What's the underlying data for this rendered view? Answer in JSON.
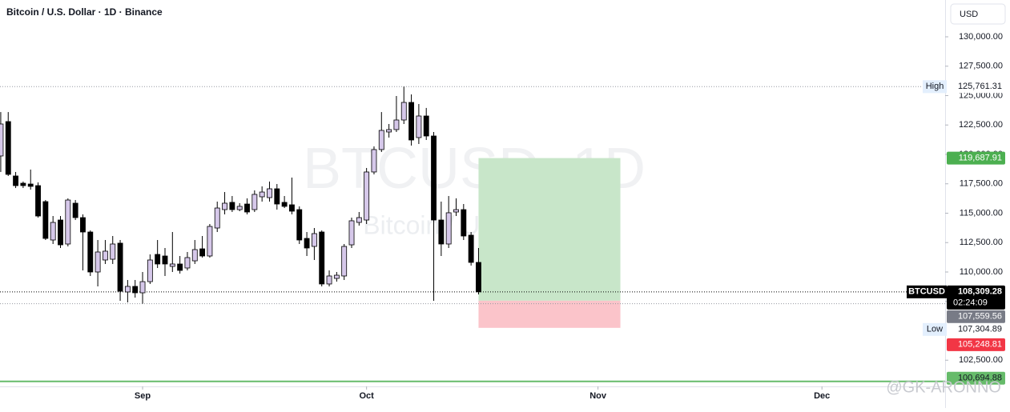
{
  "chart_data": {
    "type": "candlestick",
    "title": "Bitcoin / U.S. Dollar · 1D · Binance",
    "currency": "USD",
    "watermark_symbol": "BTCUSD, 1D",
    "watermark_name": "Bitcoin / U.S. Dollar",
    "credit": "@GK-ARONNO",
    "up_color": "#d6c8ea",
    "down_color": "#000000",
    "x": [
      -19,
      -18,
      -17,
      -16,
      -15,
      -14,
      -13,
      -12,
      -11,
      -10,
      -9,
      -8,
      -7,
      -6,
      -5,
      -4,
      -3,
      -2,
      -1,
      0,
      1,
      2,
      3,
      4,
      5,
      6,
      7,
      8,
      9,
      10,
      11,
      12,
      13,
      14,
      15,
      16,
      17,
      18,
      19,
      20,
      21,
      22,
      23,
      24,
      25,
      26,
      27,
      28,
      29,
      30,
      31,
      32,
      33,
      34,
      35,
      36,
      37,
      38,
      39,
      40,
      41,
      42,
      43,
      44,
      45
    ],
    "open": [
      119865,
      122790,
      118165,
      117550,
      117480,
      117345,
      115985,
      112720,
      114420,
      112380,
      115850,
      114625,
      113400,
      110000,
      111020,
      111085,
      112450,
      108300,
      108775,
      108230,
      109180,
      111495,
      111360,
      110475,
      110680,
      110340,
      110950,
      111970,
      111360,
      113740,
      115305,
      115920,
      115305,
      115780,
      115305,
      116395,
      116325,
      117075,
      115920,
      115715,
      115305,
      112855,
      112175,
      113400,
      108980,
      109455,
      109660,
      112310,
      114215,
      114420,
      118505,
      120410,
      121905,
      122110,
      122925,
      124420,
      121430,
      123265,
      121565,
      114420,
      112380,
      115100,
      115305,
      113130,
      110815
    ],
    "high": [
      123600,
      123600,
      118505,
      117690,
      118710,
      117620,
      116120,
      114760,
      114760,
      116260,
      116120,
      114900,
      113535,
      112720,
      112720,
      113060,
      112720,
      109320,
      109320,
      110000,
      111495,
      112720,
      112040,
      113400,
      111360,
      111700,
      112720,
      113060,
      114080,
      115985,
      116800,
      116460,
      115850,
      116260,
      116940,
      117280,
      117690,
      117480,
      116460,
      118030,
      115580,
      113400,
      113740,
      113535,
      110135,
      110000,
      112380,
      114625,
      115100,
      118845,
      120680,
      123600,
      122585,
      124966,
      125761.31,
      125100,
      124285,
      123950,
      121905,
      115985,
      116460,
      116260,
      115780,
      113400,
      112040
    ],
    "low": [
      118505,
      118165,
      117140,
      117140,
      117005,
      114625,
      112720,
      112380,
      112040,
      112175,
      114420,
      110135,
      109660,
      108775,
      110680,
      110680,
      107550,
      107415,
      107820,
      107304.89,
      108980,
      110340,
      109660,
      110000,
      109865,
      110135,
      110680,
      111225,
      111225,
      113400,
      114900,
      115100,
      115170,
      114900,
      115100,
      115985,
      115985,
      115305,
      115440,
      114900,
      112380,
      111360,
      111020,
      108775,
      108775,
      109180,
      109320,
      112040,
      113945,
      114080,
      118300,
      120205,
      121430,
      121905,
      122585,
      120750,
      120885,
      121225,
      107550,
      111360,
      112040,
      114760,
      112720,
      110545,
      108095
    ],
    "close": [
      122585,
      118300,
      117345,
      117345,
      117280,
      114760,
      112855,
      114215,
      112310,
      116120,
      114625,
      113400,
      110000,
      111700,
      111770,
      112380,
      108365,
      108775,
      108230,
      109180,
      111020,
      110680,
      110680,
      110680,
      110135,
      111225,
      111905,
      111360,
      113875,
      115440,
      115850,
      115305,
      115580,
      115100,
      116600,
      116800,
      117075,
      115780,
      115580,
      115170,
      112720,
      112040,
      113265,
      108980,
      109660,
      109725,
      112175,
      114355,
      114625,
      118505,
      120410,
      122040,
      122110,
      122925,
      124420,
      121225,
      123265,
      121565,
      114420,
      112380,
      115035,
      115305,
      113060,
      110815,
      108309.28
    ],
    "xlim": [
      -19.1,
      107.5
    ],
    "xticks": [
      {
        "value": 0,
        "label": "Sep"
      },
      {
        "value": 30,
        "label": "Oct"
      },
      {
        "value": 61,
        "label": "Nov"
      },
      {
        "value": 91,
        "label": "Dec"
      }
    ],
    "ylim": [
      100271,
      133129
    ],
    "yticks": [
      {
        "value": 102500,
        "label": "102,500.00"
      },
      {
        "value": 105000,
        "label": "105,000.00"
      },
      {
        "value": 107500,
        "label": "107,500.00"
      },
      {
        "value": 110000,
        "label": "110,000.00"
      },
      {
        "value": 112500,
        "label": "112,500.00"
      },
      {
        "value": 115000,
        "label": "115,000.00"
      },
      {
        "value": 117500,
        "label": "117,500.00"
      },
      {
        "value": 120000,
        "label": "120,000.00"
      },
      {
        "value": 122500,
        "label": "122,500.00"
      },
      {
        "value": 125000,
        "label": "125,000.00"
      },
      {
        "value": 127500,
        "label": "127,500.00"
      },
      {
        "value": 130000,
        "label": "130,000.00"
      }
    ],
    "high_marker": {
      "label": "High",
      "value": 125761.31,
      "value_label": "125,761.31"
    },
    "low_marker": {
      "label": "Low",
      "value": 107304.89,
      "value_label": "107,304.89"
    },
    "last": {
      "symbol": "BTCUSD",
      "value": 108309.28,
      "value_label": "108,309.28",
      "countdown": "02:24:09"
    },
    "position": {
      "x_start": 45,
      "x_end": 64,
      "target": {
        "value": 119687.91,
        "label": "119,687.91"
      },
      "entry": {
        "value": 107559.56,
        "label": "107,559.56"
      },
      "stop": {
        "value": 105248.81,
        "label": "105,248.81"
      },
      "profit_color": "#c8e6c9",
      "loss_color": "#fbc4ca"
    },
    "level": {
      "value": 100694.88,
      "label": "100,694.88",
      "color": "#66bb6a"
    }
  }
}
